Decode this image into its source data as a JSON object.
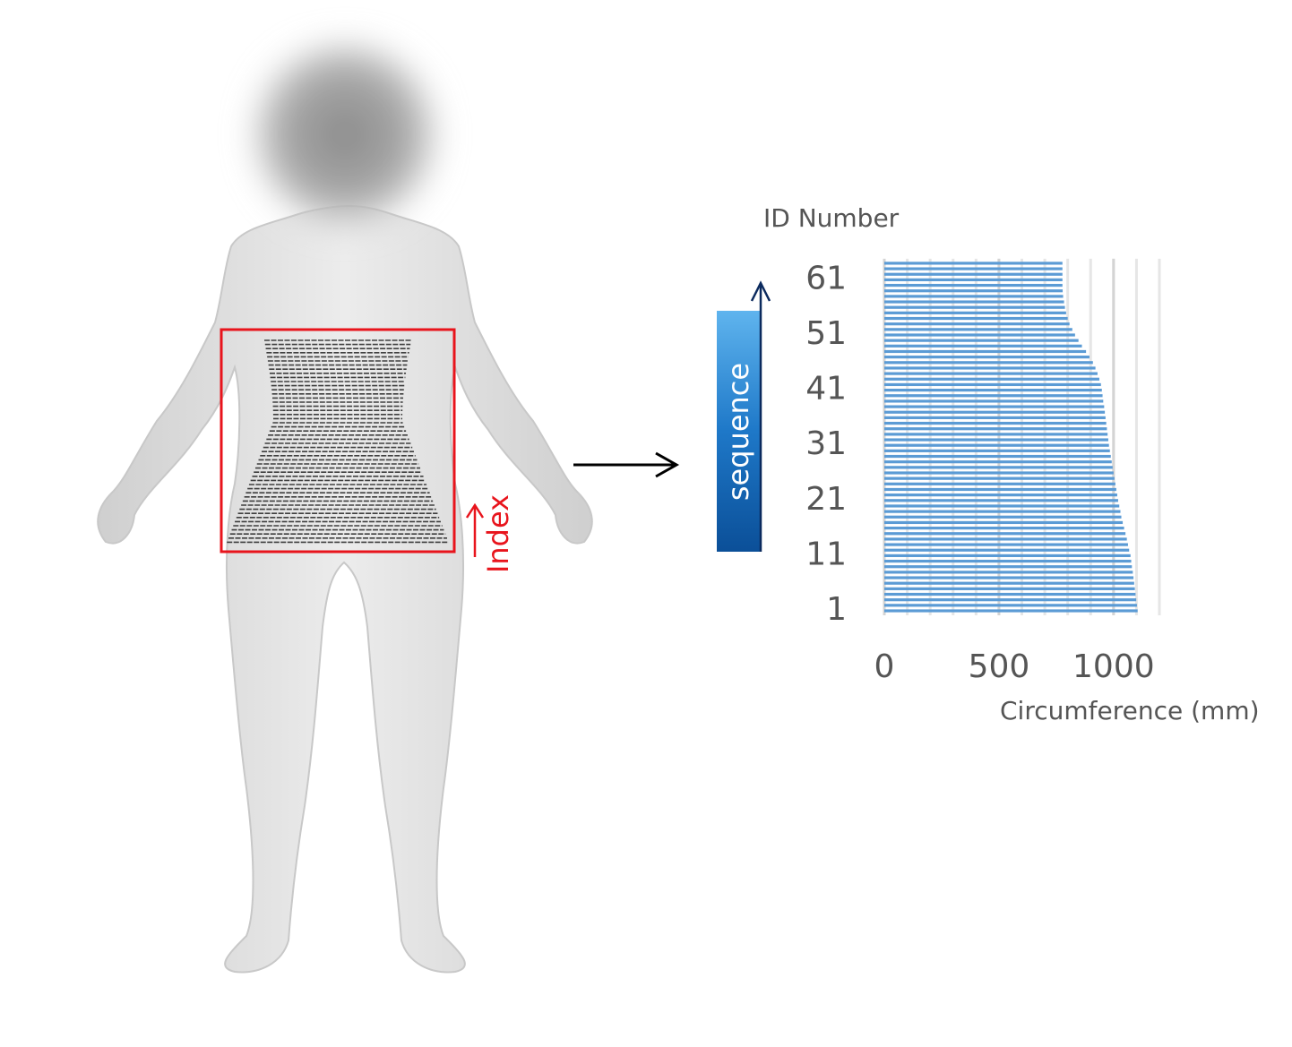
{
  "chart_data": {
    "type": "hbar",
    "y_label": "ID Number",
    "x_label": "Circumference (mm)",
    "annotations": [
      "sequence",
      "Index"
    ],
    "categories": [
      "1",
      null,
      null,
      null,
      null,
      null,
      null,
      null,
      null,
      null,
      "11",
      null,
      null,
      null,
      null,
      null,
      null,
      null,
      null,
      null,
      "21",
      null,
      null,
      null,
      null,
      null,
      null,
      null,
      null,
      null,
      "31",
      null,
      null,
      null,
      null,
      null,
      null,
      null,
      null,
      null,
      "41",
      null,
      null,
      null,
      null,
      null,
      null,
      null,
      null,
      null,
      "51",
      null,
      null,
      null,
      null,
      null,
      null,
      null,
      null,
      null,
      "61",
      null,
      null,
      null
    ],
    "values": [
      1105,
      1102,
      1099,
      1096,
      1093,
      1090,
      1087,
      1084,
      1080,
      1077,
      1074,
      1068,
      1063,
      1058,
      1052,
      1046,
      1040,
      1034,
      1030,
      1025,
      1020,
      1016,
      1012,
      1008,
      1004,
      1000,
      996,
      992,
      988,
      984,
      980,
      977,
      974,
      971,
      968,
      965,
      962,
      959,
      955,
      952,
      949,
      945,
      938,
      930,
      921,
      910,
      895,
      880,
      862,
      847,
      832,
      820,
      808,
      800,
      793,
      788,
      784,
      780,
      778,
      777,
      777,
      777,
      777,
      777
    ],
    "color": "#5b9bd5",
    "xlim": [
      0,
      1200
    ],
    "xticks": [
      0,
      500,
      1000
    ],
    "grid_xticks": [
      100,
      200,
      300,
      400,
      500,
      600,
      700,
      800,
      900,
      1000,
      1100,
      1200
    ],
    "grid": true
  }
}
